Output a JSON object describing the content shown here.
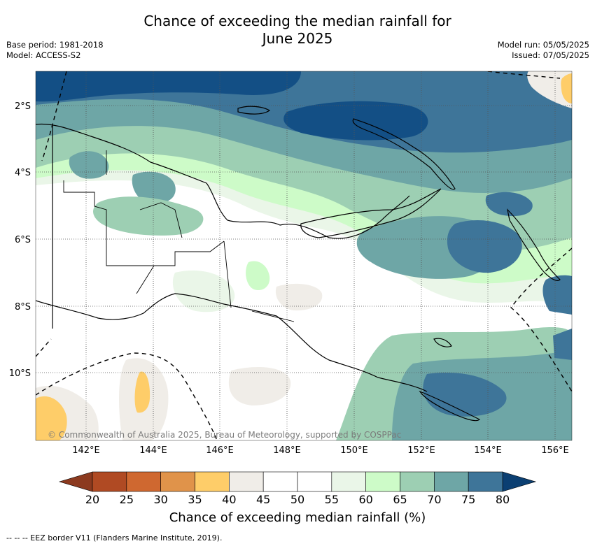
{
  "header": {
    "title_line1": "Chance of exceeding the median rainfall for",
    "title_line2": "June 2025",
    "base_period": "Base period: 1981-2018",
    "model": "Model: ACCESS-S2",
    "model_run": "Model run: 05/05/2025",
    "issued": "Issued: 07/05/2025"
  },
  "map": {
    "credit": "© Commonwealth of Australia 2025, Bureau of Meteorology, supported by COSPPac",
    "lon_labels": [
      "142°E",
      "144°E",
      "146°E",
      "148°E",
      "150°E",
      "152°E",
      "154°E",
      "156°E"
    ],
    "lat_labels": [
      "2°S",
      "4°S",
      "6°S",
      "8°S",
      "10°S"
    ]
  },
  "colorbar": {
    "title": "Chance of exceeding median rainfall (%)",
    "ticks": [
      "20",
      "25",
      "30",
      "35",
      "40",
      "45",
      "50",
      "55",
      "60",
      "65",
      "70",
      "75",
      "80"
    ],
    "colors": [
      "#b04a23",
      "#cf6830",
      "#e0934a",
      "#fecd69",
      "#f0ede8",
      "#ffffff",
      "#ffffff",
      "#eaf6e8",
      "#cdfbc8",
      "#9dcfb3",
      "#6ea6a6",
      "#3e7599",
      "#134f85"
    ]
  },
  "footer": {
    "eez_legend": "--  --  -- EEZ border V11 (Flanders Marine Institute, 2019)."
  }
}
